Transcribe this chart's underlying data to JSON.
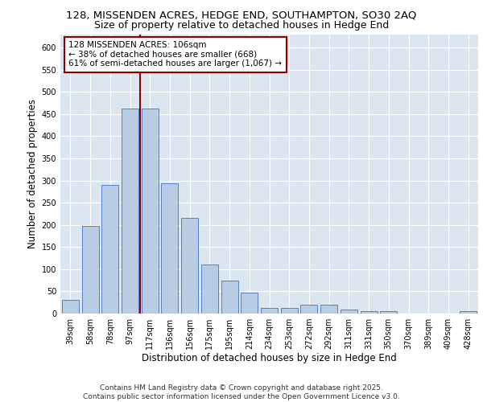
{
  "title_line1": "128, MISSENDEN ACRES, HEDGE END, SOUTHAMPTON, SO30 2AQ",
  "title_line2": "Size of property relative to detached houses in Hedge End",
  "xlabel": "Distribution of detached houses by size in Hedge End",
  "ylabel": "Number of detached properties",
  "categories": [
    "39sqm",
    "58sqm",
    "78sqm",
    "97sqm",
    "117sqm",
    "136sqm",
    "156sqm",
    "175sqm",
    "195sqm",
    "214sqm",
    "234sqm",
    "253sqm",
    "272sqm",
    "292sqm",
    "311sqm",
    "331sqm",
    "350sqm",
    "370sqm",
    "389sqm",
    "409sqm",
    "428sqm"
  ],
  "values": [
    30,
    197,
    290,
    462,
    462,
    293,
    215,
    110,
    75,
    47,
    13,
    13,
    20,
    20,
    9,
    5,
    5,
    0,
    0,
    0,
    5
  ],
  "bar_color": "#b8cce4",
  "bar_edge_color": "#4472c4",
  "vline_color": "#8b0000",
  "vline_x": 3.5,
  "annotation_text": "128 MISSENDEN ACRES: 106sqm\n← 38% of detached houses are smaller (668)\n61% of semi-detached houses are larger (1,067) →",
  "annotation_box_color": "#ffffff",
  "annotation_box_edge": "#8b0000",
  "ylim": [
    0,
    630
  ],
  "yticks": [
    0,
    50,
    100,
    150,
    200,
    250,
    300,
    350,
    400,
    450,
    500,
    550,
    600
  ],
  "background_color": "#dce6f0",
  "footer": "Contains HM Land Registry data © Crown copyright and database right 2025.\nContains public sector information licensed under the Open Government Licence v3.0.",
  "title_fontsize": 9.5,
  "subtitle_fontsize": 9,
  "axis_label_fontsize": 8.5,
  "tick_fontsize": 7,
  "annotation_fontsize": 7.5,
  "footer_fontsize": 6.5
}
